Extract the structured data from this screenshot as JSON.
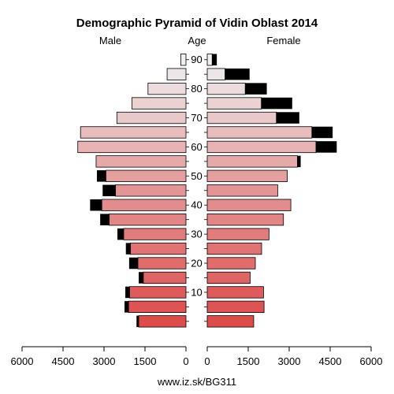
{
  "chart_data": {
    "type": "population-pyramid",
    "title": "Demographic Pyramid of Vidin Oblast 2014",
    "left_label": "Male",
    "center_label": "Age",
    "right_label": "Female",
    "footer": "www.iz.sk/BG311",
    "age_ticks": [
      "10",
      "20",
      "30",
      "40",
      "50",
      "60",
      "70",
      "80",
      "90"
    ],
    "x_ticks_left": [
      "6000",
      "4500",
      "3000",
      "1500",
      "0"
    ],
    "x_ticks_right": [
      "0",
      "1500",
      "3000",
      "4500",
      "6000"
    ],
    "xlim": [
      0,
      6000
    ],
    "age_groups": [
      "0-4",
      "5-9",
      "10-14",
      "15-19",
      "20-24",
      "25-29",
      "30-34",
      "35-39",
      "40-44",
      "45-49",
      "50-54",
      "55-59",
      "60-64",
      "65-69",
      "70-74",
      "75-79",
      "80-84",
      "85-89",
      "90+"
    ],
    "male": {
      "main": [
        1730,
        2100,
        2060,
        1560,
        1760,
        2030,
        2280,
        2810,
        3080,
        2580,
        2930,
        3290,
        3960,
        3860,
        2530,
        1980,
        1390,
        690,
        190
      ],
      "excess": [
        80,
        150,
        160,
        170,
        320,
        170,
        230,
        330,
        430,
        470,
        330,
        0,
        0,
        0,
        0,
        0,
        0,
        0,
        0
      ]
    },
    "female": {
      "main": [
        1700,
        2080,
        2060,
        1570,
        1760,
        1990,
        2260,
        2790,
        3060,
        2580,
        2930,
        3300,
        3980,
        3830,
        2530,
        1980,
        1390,
        650,
        180
      ],
      "excess": [
        0,
        0,
        0,
        0,
        0,
        0,
        0,
        0,
        0,
        0,
        0,
        120,
        760,
        760,
        840,
        1130,
        790,
        900,
        170
      ]
    },
    "colors": {
      "excess": "#000000",
      "stroke": "#000000",
      "young": "#dd4b4b",
      "mid": "#e39595",
      "old": "#eef0f2"
    }
  }
}
